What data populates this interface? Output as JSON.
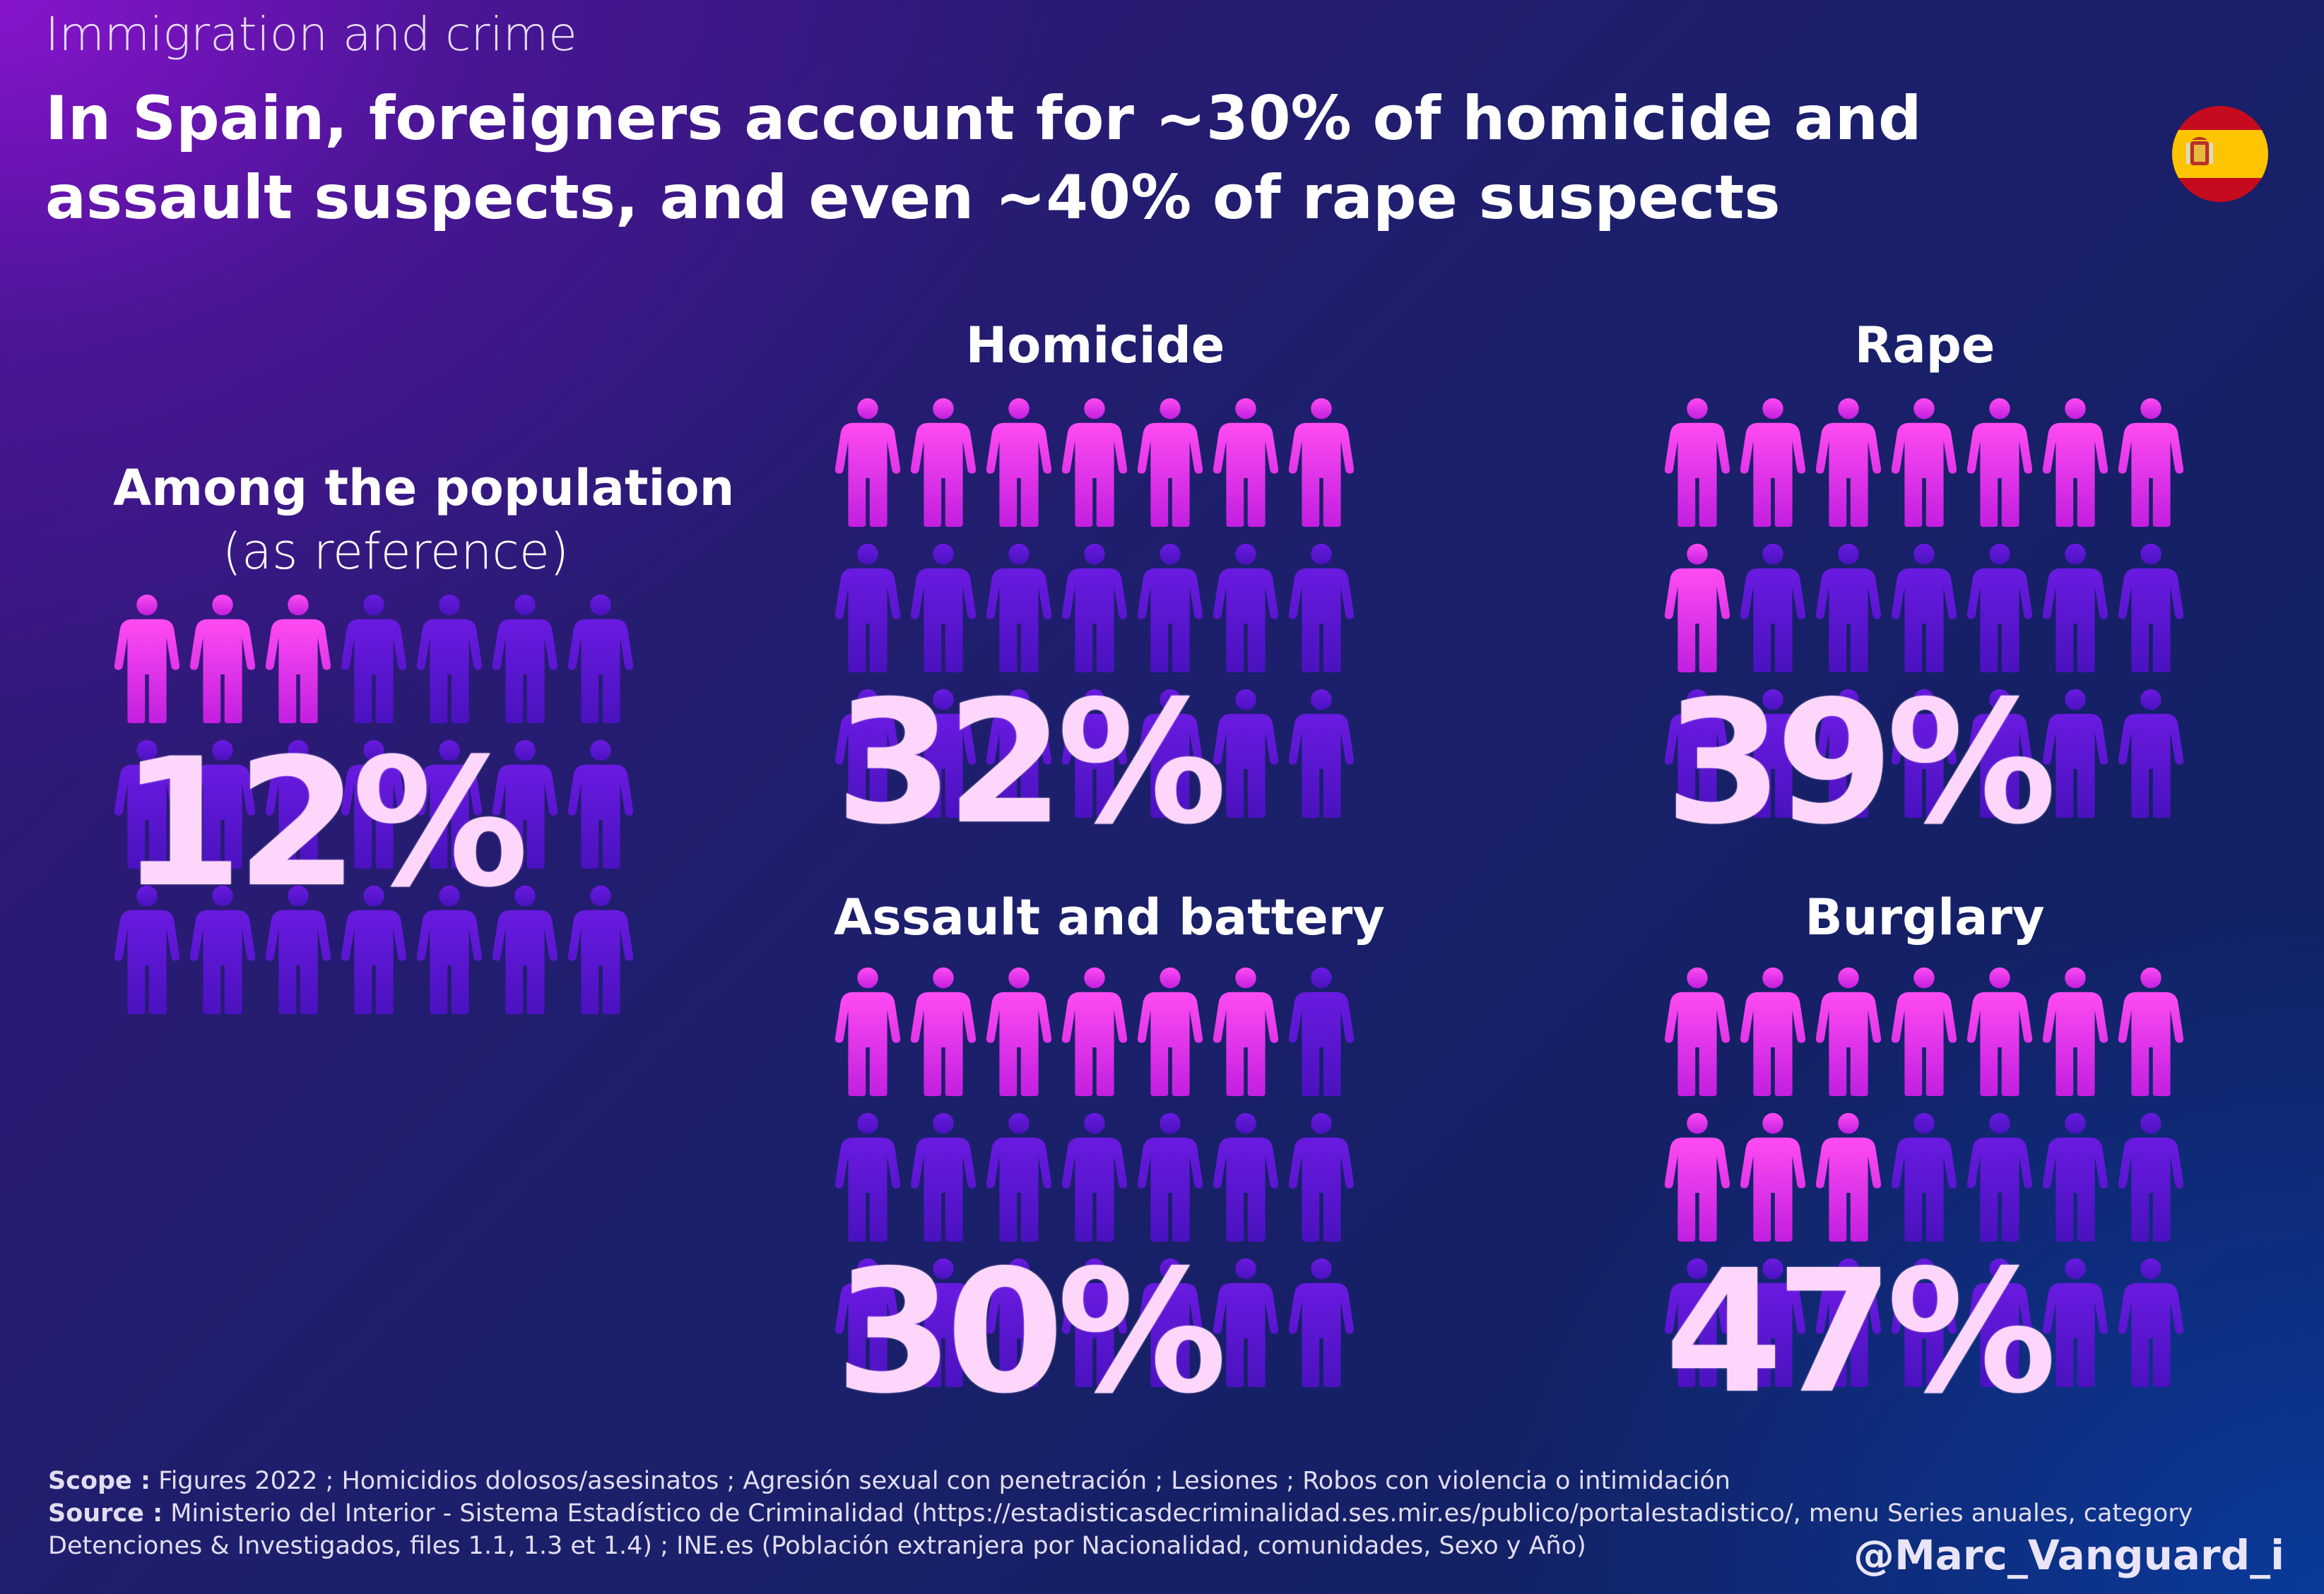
{
  "header": {
    "supertitle": "Immigration and crime",
    "headline": "In Spain, foreigners account for ~30%  of homicide and assault suspects, and even ~40% of rape suspects",
    "flag_icon": "spain-flag-icon"
  },
  "colors": {
    "highlight_figure": "#ff3df0",
    "base_figure": "#5a15d4",
    "percent_text": "#ffd6fb"
  },
  "chart_data": {
    "type": "pictogram",
    "unit": "%",
    "panels": [
      {
        "id": "population",
        "title": "Among the population",
        "subtitle": "(as reference)",
        "value": 12,
        "label": "12%",
        "rows": 3,
        "cols": 7,
        "highlighted": 3
      },
      {
        "id": "homicide",
        "title": "Homicide",
        "value": 32,
        "label": "32%",
        "rows": 3,
        "cols": 7,
        "highlighted": 7
      },
      {
        "id": "rape",
        "title": "Rape",
        "value": 39,
        "label": "39%",
        "rows": 3,
        "cols": 7,
        "highlighted": 8
      },
      {
        "id": "assault",
        "title": "Assault and battery",
        "value": 30,
        "label": "30%",
        "rows": 3,
        "cols": 7,
        "highlighted": 6
      },
      {
        "id": "burglary",
        "title": "Burglary",
        "value": 47,
        "label": "47%",
        "rows": 3,
        "cols": 7,
        "highlighted": 10
      }
    ]
  },
  "footer": {
    "scope_label": "Scope :",
    "scope_text": " Figures 2022 ; Homicidios dolosos/asesinatos ; Agresión sexual con penetración ; Lesiones ; Robos con violencia o intimidación",
    "source_label": "Source :",
    "source_text": " Ministerio del Interior - Sistema Estadístico de Criminalidad (https://estadisticasdecriminalidad.ses.mir.es/publico/portalestadistico/, menu Series anuales, category Detenciones & Investigados, files 1.1, 1.3 et 1.4) ; INE.es (Población extranjera por Nacionalidad, comunidades, Sexo y Año)",
    "handle": "@Marc_Vanguard_i"
  }
}
